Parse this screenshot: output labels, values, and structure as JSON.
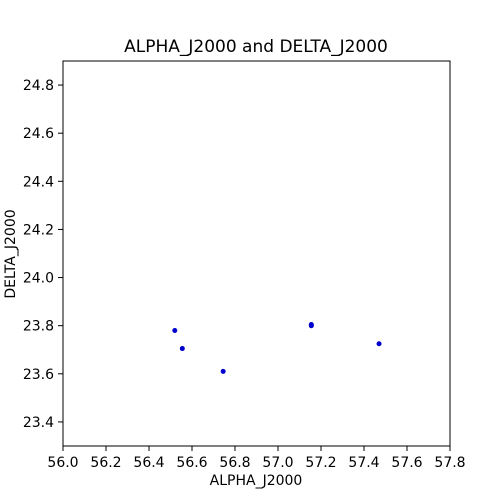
{
  "chart_data": {
    "type": "scatter",
    "title": "ALPHA_J2000 and DELTA_J2000",
    "xlabel": "ALPHA_J2000",
    "ylabel": "DELTA_J2000",
    "xlim": [
      56.0,
      57.8
    ],
    "ylim": [
      23.3,
      24.9
    ],
    "xticks": [
      "56.0",
      "56.2",
      "56.4",
      "56.6",
      "56.8",
      "57.0",
      "57.2",
      "57.4",
      "57.6",
      "57.8"
    ],
    "yticks": [
      "23.4",
      "23.6",
      "23.8",
      "24.0",
      "24.2",
      "24.4",
      "24.6",
      "24.8"
    ],
    "grid": false,
    "series": [
      {
        "color": "#0000cc",
        "points": [
          {
            "x": 56.52,
            "y": 23.78
          },
          {
            "x": 56.555,
            "y": 23.705
          },
          {
            "x": 56.745,
            "y": 23.61
          },
          {
            "x": 57.155,
            "y": 23.805
          },
          {
            "x": 57.155,
            "y": 23.8
          },
          {
            "x": 57.47,
            "y": 23.725
          }
        ]
      }
    ]
  }
}
